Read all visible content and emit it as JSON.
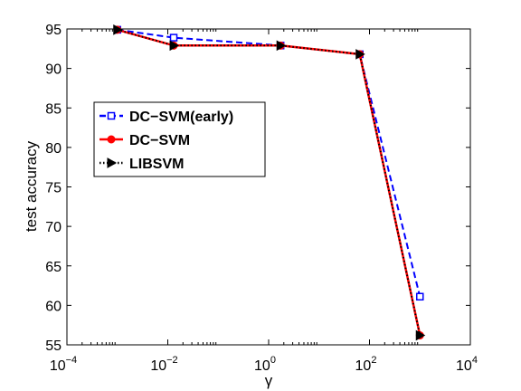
{
  "chart_data": {
    "type": "line",
    "xscale": "log",
    "xlim": [
      0.0001,
      10000
    ],
    "ylim": [
      55,
      95
    ],
    "xlabel": "γ",
    "ylabel": "test accuracy",
    "x_ticks": [
      {
        "value": 0.0001,
        "base": "10",
        "exp": "−4"
      },
      {
        "value": 0.01,
        "base": "10",
        "exp": "−2"
      },
      {
        "value": 1,
        "base": "10",
        "exp": "0"
      },
      {
        "value": 100,
        "base": "10",
        "exp": "2"
      },
      {
        "value": 10000,
        "base": "10",
        "exp": "4"
      }
    ],
    "y_ticks": [
      55,
      60,
      65,
      70,
      75,
      80,
      85,
      90,
      95
    ],
    "grid": false,
    "legend_position": "middle-left",
    "series": [
      {
        "name": "DC−SVM(early)",
        "color": "#0000ff",
        "line_style": "dashed",
        "marker": "square",
        "x": [
          0.001,
          0.0131,
          1.726,
          64.1,
          1000
        ],
        "y": [
          94.9,
          93.9,
          92.9,
          91.8,
          61.1
        ]
      },
      {
        "name": "DC−SVM",
        "color": "#ff0000",
        "line_style": "solid",
        "marker": "circle",
        "x": [
          0.001,
          0.0131,
          1.726,
          64.1,
          1000
        ],
        "y": [
          94.9,
          92.9,
          92.9,
          91.8,
          56.2
        ]
      },
      {
        "name": "LIBSVM",
        "color": "#000000",
        "line_style": "dotted",
        "marker": "triangle-right",
        "x": [
          0.001,
          0.0131,
          1.726,
          64.1,
          1000
        ],
        "y": [
          94.9,
          92.9,
          92.9,
          91.8,
          56.2
        ]
      }
    ]
  }
}
